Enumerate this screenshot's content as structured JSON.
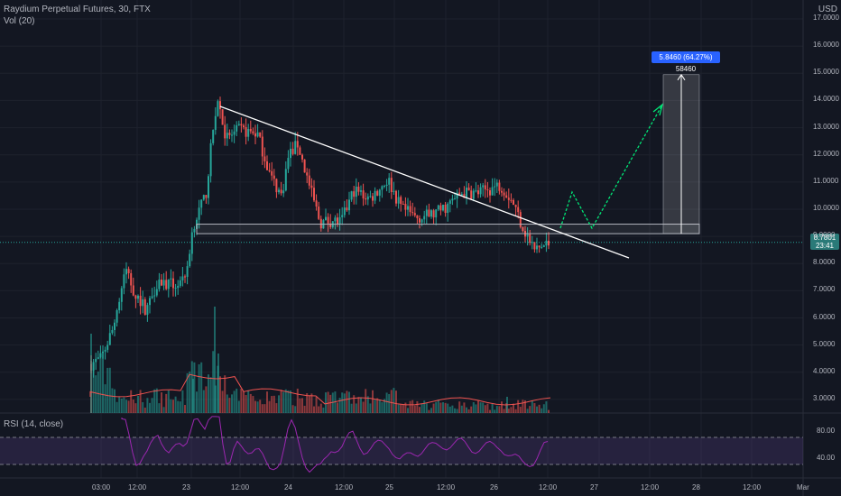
{
  "header": {
    "title": "Raydium Perpetual Futures, 30, FTX",
    "volume_label": "Vol (20)",
    "currency": "USD"
  },
  "rsi": {
    "label": "RSI (14, close)",
    "ticks": [
      "80.00",
      "40.00"
    ]
  },
  "price_axis": {
    "ticks": [
      "16.0000",
      "15.0000",
      "14.0000",
      "13.0000",
      "12.0000",
      "11.0000",
      "10.0000",
      "9.0000",
      "8.0000",
      "7.0000",
      "6.0000",
      "5.0000",
      "4.0000",
      "3.0000",
      "17.0000"
    ]
  },
  "current_price": {
    "value": "8.7801",
    "countdown": "23:41"
  },
  "measure": {
    "label": "5.8460 (64.27%) 58460"
  },
  "time_axis": {
    "ticks": [
      "03:00",
      "12:00",
      "23",
      "12:00",
      "24",
      "12:00",
      "25",
      "12:00",
      "26",
      "12:00",
      "27",
      "12:00",
      "28",
      "12:00",
      "Mar"
    ]
  },
  "colors": {
    "bg": "#131722",
    "up": "#26a69a",
    "down": "#ef5350",
    "trend": "#ffffff",
    "projection": "#00e676",
    "rsi": "#9c27b0",
    "grid": "#1e222d"
  },
  "chart_data": {
    "type": "candlestick",
    "title": "Raydium Perpetual Futures, 30, FTX",
    "y_unit": "USD",
    "ylim": [
      2.5,
      17.2
    ],
    "last_price": 8.7801,
    "resistance_zone": [
      9.1,
      9.4
    ],
    "measured_move": {
      "from": 9.1,
      "to": 14.95,
      "change": 5.846,
      "percent": 64.27
    },
    "rsi_levels": [
      70,
      30
    ]
  }
}
